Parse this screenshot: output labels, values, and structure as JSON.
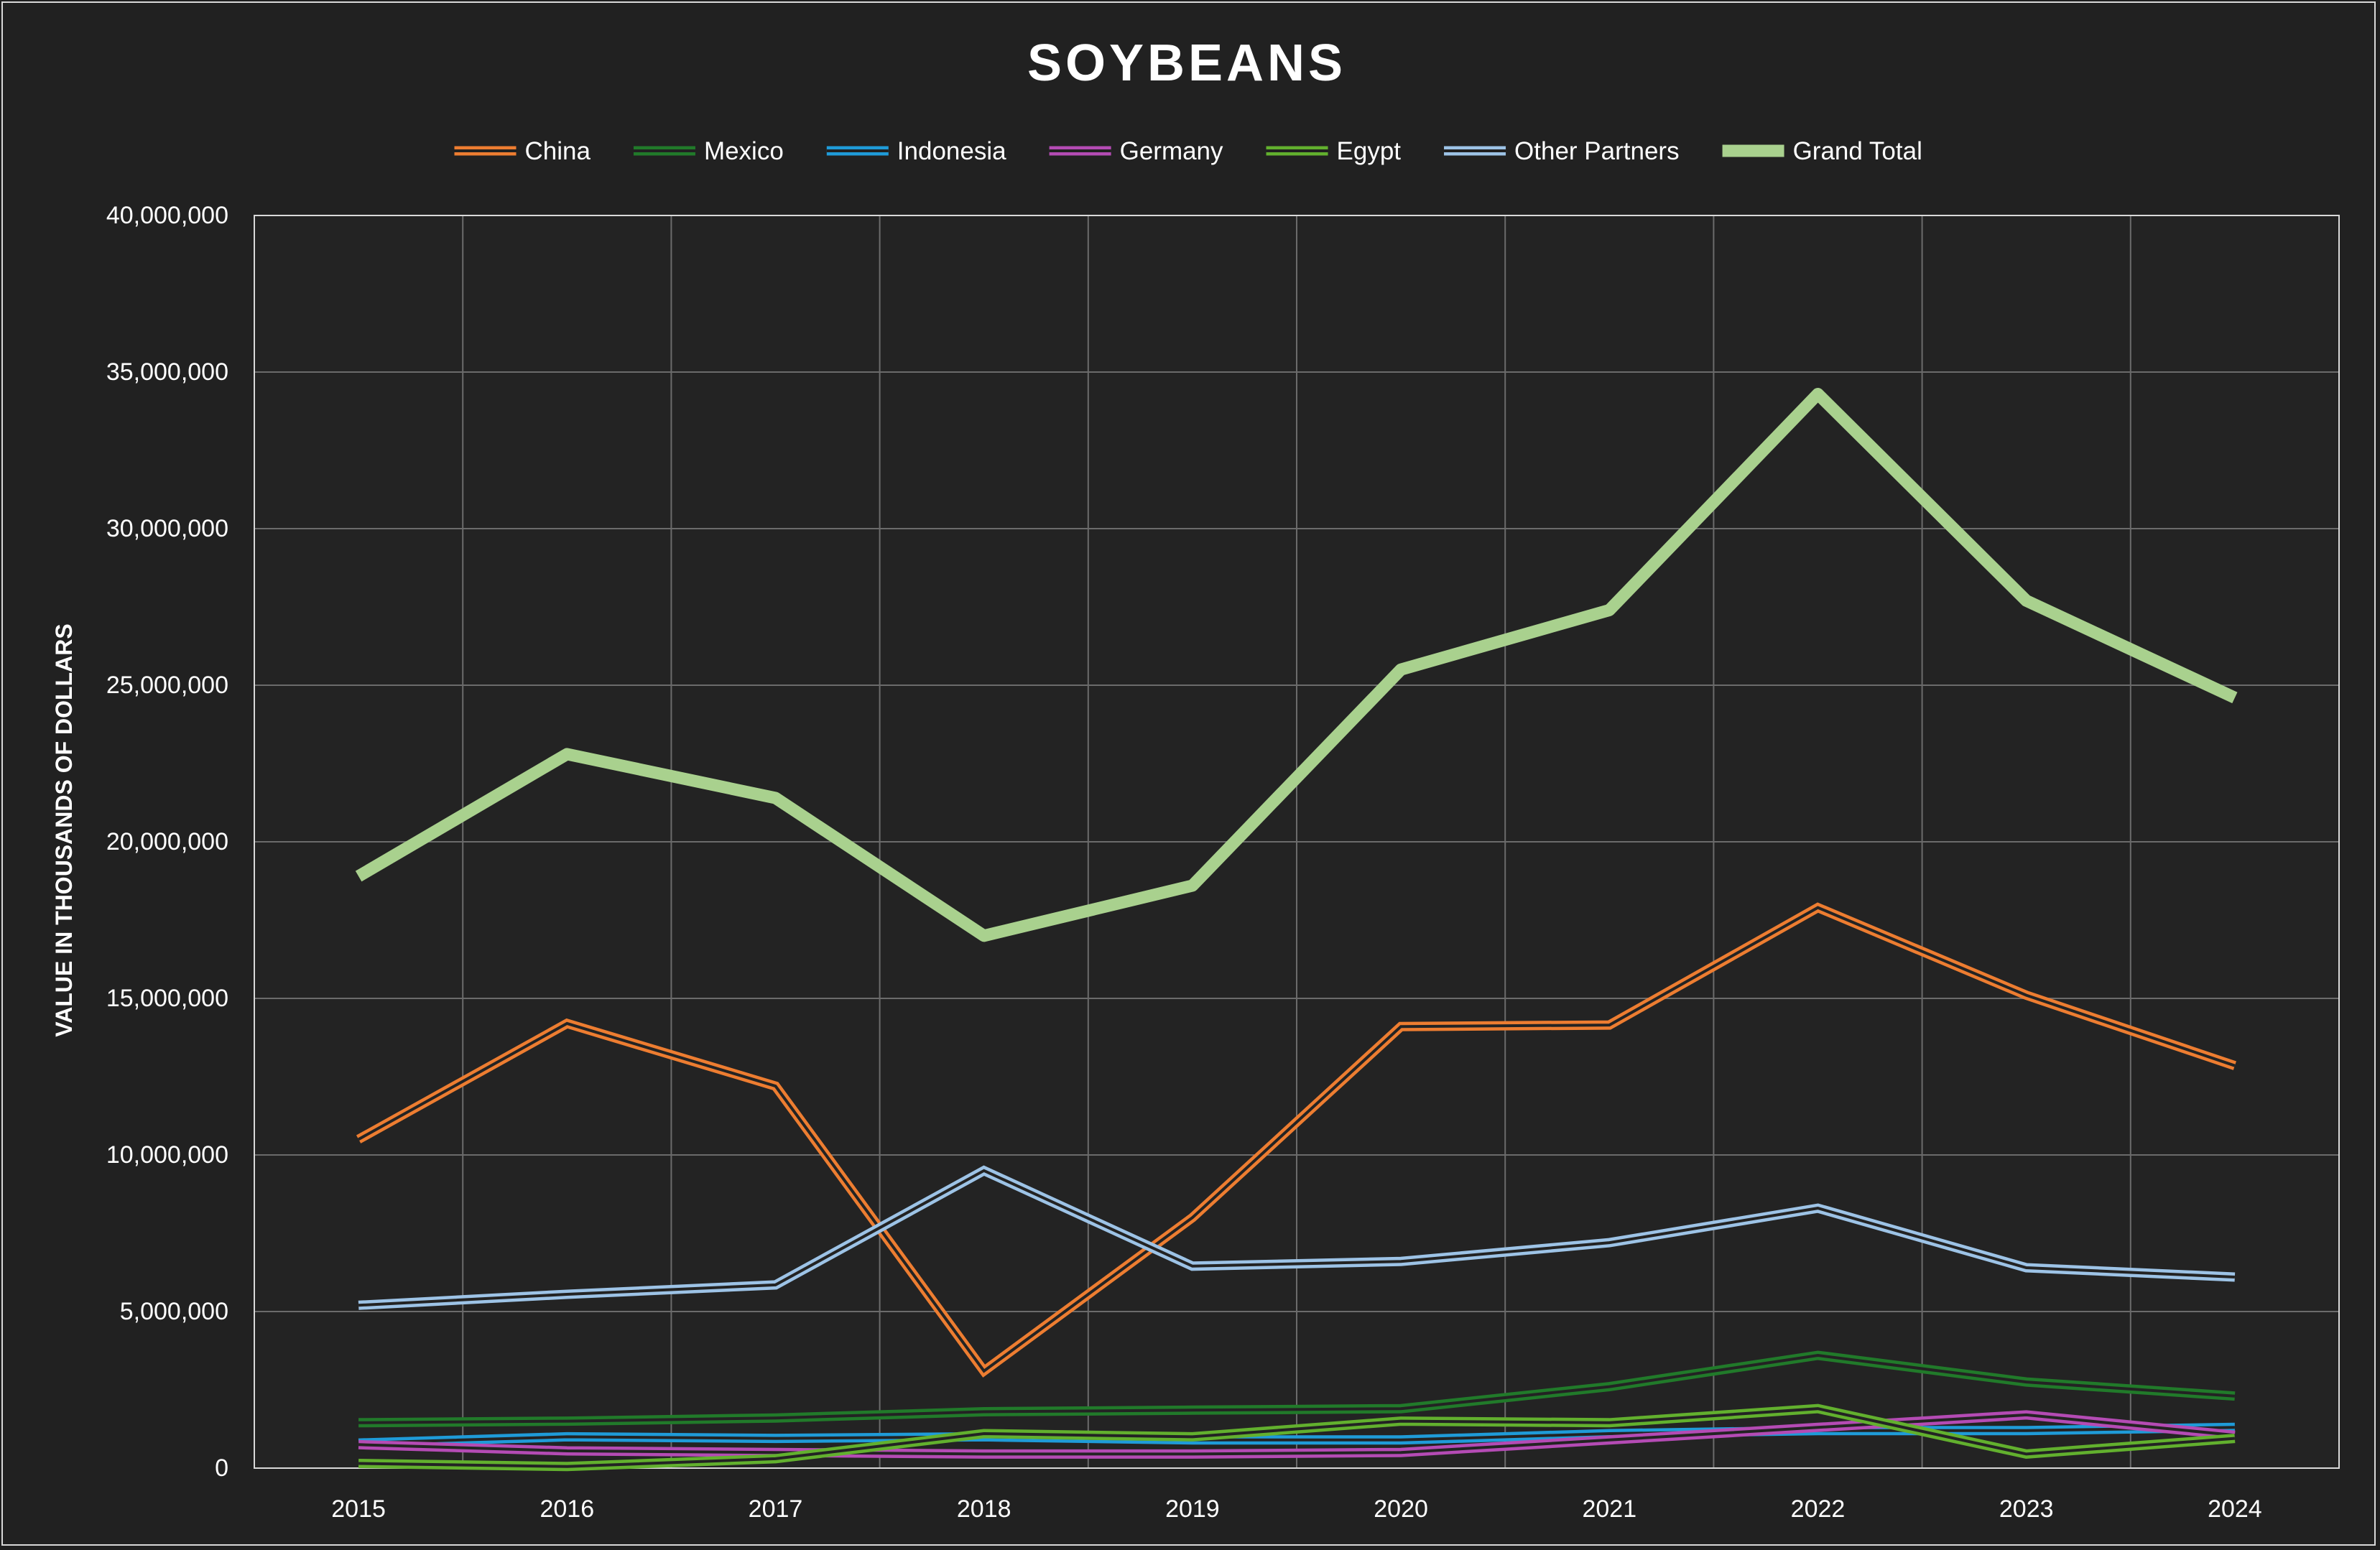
{
  "chart_data": {
    "type": "line",
    "title": "SOYBEANS",
    "ylabel": "VALUE IN THOUSANDS OF DOLLARS",
    "xlabel": "",
    "x": [
      "2015",
      "2016",
      "2017",
      "2018",
      "2019",
      "2020",
      "2021",
      "2022",
      "2023",
      "2024"
    ],
    "ylim": [
      0,
      40000000
    ],
    "yticks": [
      0,
      5000000,
      10000000,
      15000000,
      20000000,
      25000000,
      30000000,
      35000000,
      40000000
    ],
    "ytick_labels": [
      "0",
      "5,000,000",
      "10,000,000",
      "15,000,000",
      "20,000,000",
      "25,000,000",
      "30,000,000",
      "35,000,000",
      "40,000,000"
    ],
    "grid": true,
    "legend_position": "top",
    "series": [
      {
        "name": "China",
        "color": "#ED7D31",
        "style": "double",
        "values": [
          10500000,
          14200000,
          12200000,
          3100000,
          8000000,
          14100000,
          14150000,
          17900000,
          15100000,
          12850000
        ]
      },
      {
        "name": "Mexico",
        "color": "#217A2A",
        "style": "double",
        "values": [
          1450000,
          1500000,
          1600000,
          1800000,
          1850000,
          1900000,
          2600000,
          3600000,
          2750000,
          2300000
        ]
      },
      {
        "name": "Indonesia",
        "color": "#1F9BD8",
        "style": "double",
        "values": [
          800000,
          1000000,
          950000,
          1000000,
          900000,
          900000,
          1100000,
          1200000,
          1200000,
          1300000
        ]
      },
      {
        "name": "Germany",
        "color": "#B44BB4",
        "style": "double",
        "values": [
          750000,
          550000,
          500000,
          450000,
          450000,
          500000,
          900000,
          1300000,
          1700000,
          1050000
        ]
      },
      {
        "name": "Egypt",
        "color": "#62B02E",
        "style": "double",
        "values": [
          150000,
          50000,
          300000,
          1100000,
          1000000,
          1500000,
          1450000,
          1900000,
          450000,
          950000
        ]
      },
      {
        "name": "Other Partners",
        "color": "#9DC3E6",
        "style": "double",
        "values": [
          5200000,
          5550000,
          5850000,
          9500000,
          6450000,
          6600000,
          7200000,
          8300000,
          6400000,
          6100000
        ]
      },
      {
        "name": "Grand Total",
        "color": "#A9D18E",
        "style": "thick",
        "values": [
          18900000,
          22800000,
          21400000,
          17000000,
          18600000,
          25500000,
          27400000,
          34300000,
          27700000,
          24600000
        ]
      }
    ]
  }
}
